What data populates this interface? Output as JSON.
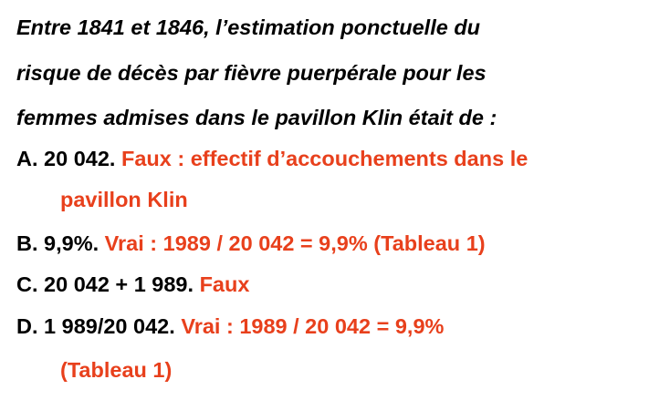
{
  "colors": {
    "text": "#000000",
    "answer": "#e8401c",
    "background": "#ffffff"
  },
  "question": {
    "line1": "Entre 1841 et 1846, l’estimation ponctuelle du",
    "line2": "risque de décès par fièvre puerpérale pour les",
    "line3": "femmes admises dans le pavillon Klin était de :"
  },
  "options": {
    "a": {
      "label": "A. 20 042.",
      "answer_part1": "Faux : effectif d’accouchements dans le",
      "answer_part2": "pavillon Klin"
    },
    "b": {
      "label": "B. 9,9%.",
      "answer": "Vrai : 1989 / 20 042 = 9,9% (Tableau 1)"
    },
    "c": {
      "label": "C. 20 042 + 1 989.",
      "answer": "Faux"
    },
    "d": {
      "label": "D. 1 989/20 042.",
      "answer_part1": "Vrai : 1989 / 20 042 = 9,9%",
      "answer_part2": "(Tableau 1)"
    }
  }
}
